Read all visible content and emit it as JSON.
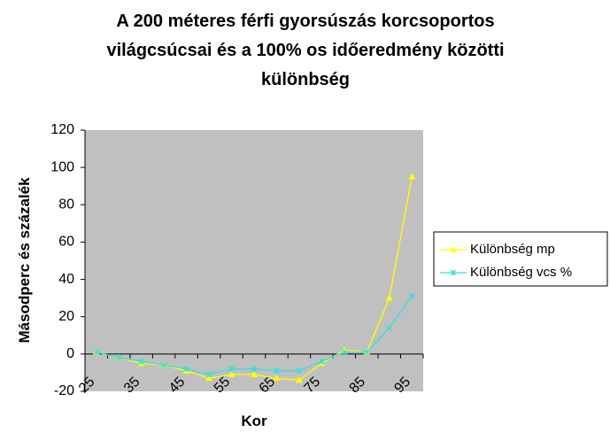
{
  "chart_data": {
    "type": "line",
    "title": [
      "A 200 méteres férfi gyorsúszás korcsoportos",
      "világcsúcsai és a 100% os időeredmény közötti",
      "különbség"
    ],
    "xlabel": "Kor",
    "ylabel": "Másodperc és százalék",
    "categories": [
      "25",
      null,
      "35",
      null,
      "45",
      null,
      "55",
      null,
      "65",
      null,
      "75",
      null,
      "85",
      null,
      "95"
    ],
    "series": [
      {
        "name": "Különbség mp",
        "color": "#ffff00",
        "marker": "triangle",
        "values": [
          1,
          -2,
          -5,
          -6,
          -9,
          -13,
          -11,
          -11,
          -13,
          -14,
          -5,
          2,
          1,
          30,
          95
        ]
      },
      {
        "name": "Különbség vcs %",
        "color": "#33e0e0",
        "marker": "x",
        "values": [
          1,
          -2,
          -4,
          -6,
          -8,
          -11,
          -8,
          -8,
          -9,
          -9,
          -4,
          1,
          1,
          14,
          31
        ]
      }
    ],
    "ylim": [
      -20,
      120
    ],
    "yticks": [
      -20,
      0,
      20,
      40,
      60,
      80,
      100,
      120
    ],
    "plot_background": "#c0c0c0",
    "legend": "right"
  }
}
